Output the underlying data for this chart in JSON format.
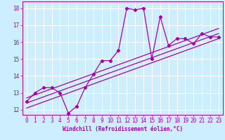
{
  "xlabel": "Windchill (Refroidissement éolien,°C)",
  "background_color": "#cceeff",
  "grid_color": "#ffffff",
  "line_color": "#aa00aa",
  "xlim": [
    -0.5,
    23.5
  ],
  "ylim": [
    11.7,
    18.4
  ],
  "yticks": [
    12,
    13,
    14,
    15,
    16,
    17,
    18
  ],
  "xticks": [
    0,
    1,
    2,
    3,
    4,
    5,
    6,
    7,
    8,
    9,
    10,
    11,
    12,
    13,
    14,
    15,
    16,
    17,
    18,
    19,
    20,
    21,
    22,
    23
  ],
  "data_line": [
    12.5,
    13.0,
    13.3,
    13.3,
    13.0,
    11.8,
    12.2,
    13.3,
    14.1,
    14.9,
    14.9,
    15.5,
    18.0,
    17.9,
    18.0,
    15.0,
    17.5,
    15.8,
    16.2,
    16.2,
    15.9,
    16.5,
    16.3,
    16.3
  ],
  "trend1_start": 12.1,
  "trend1_end": 16.2,
  "trend2_start": 12.4,
  "trend2_end": 16.5,
  "trend3_start": 12.7,
  "trend3_end": 16.8,
  "xlabel_fontsize": 5.5,
  "tick_fontsize": 5.5,
  "linewidth": 0.9,
  "markersize": 2.2
}
